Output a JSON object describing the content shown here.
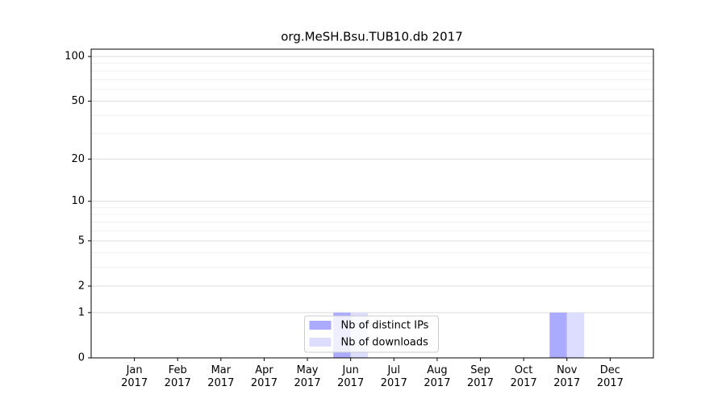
{
  "chart_data": {
    "type": "bar",
    "title": "org.MeSH.Bsu.TUB10.db 2017",
    "categories": [
      "Jan\n2017",
      "Feb\n2017",
      "Mar\n2017",
      "Apr\n2017",
      "May\n2017",
      "Jun\n2017",
      "Jul\n2017",
      "Aug\n2017",
      "Sep\n2017",
      "Oct\n2017",
      "Nov\n2017",
      "Dec\n2017"
    ],
    "series": [
      {
        "name": "Nb of distinct IPs",
        "color": "#aaaaff",
        "values": [
          0,
          0,
          0,
          0,
          0,
          1,
          0,
          0,
          0,
          0,
          1,
          0
        ]
      },
      {
        "name": "Nb of downloads",
        "color": "#ddddff",
        "values": [
          0,
          0,
          0,
          0,
          0,
          1,
          0,
          0,
          0,
          0,
          1,
          0
        ]
      }
    ],
    "yscale": "log1p",
    "ylim": [
      0,
      112
    ],
    "yticks": [
      0,
      1,
      2,
      5,
      10,
      20,
      50,
      100
    ],
    "yminorticks": [
      3,
      4,
      6,
      7,
      8,
      9,
      30,
      40,
      60,
      70,
      80,
      90
    ],
    "grid": true,
    "legend": "lower center"
  }
}
